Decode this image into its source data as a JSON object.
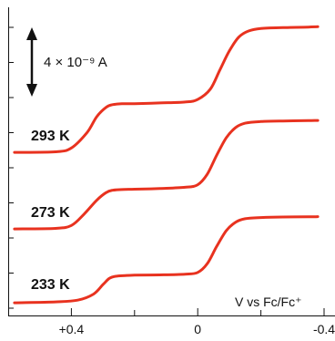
{
  "chart_data": {
    "type": "line",
    "xlabel": "V vs Fc/Fc⁺",
    "xlim": [
      0.6,
      -0.4
    ],
    "x_reversed": true,
    "x_ticks": [
      {
        "value": 0.4,
        "label": "+0.4"
      },
      {
        "value": 0.0,
        "label": "0"
      },
      {
        "value": -0.4,
        "label": "-0.4"
      }
    ],
    "y_units": "A",
    "scale_bar": {
      "value": 4e-09,
      "label": "4 × 10⁻⁹ A"
    },
    "grid": false,
    "line_color": "#e8321f",
    "series": [
      {
        "name": "293 K",
        "x": [
          0.58,
          0.45,
          0.4,
          0.35,
          0.32,
          0.29,
          0.27,
          0.24,
          0.2,
          0.12,
          0.04,
          0.0,
          -0.04,
          -0.07,
          -0.1,
          -0.13,
          -0.16,
          -0.2,
          -0.27,
          -0.35,
          -0.38
        ],
        "y": [
          0.05,
          0.08,
          0.3,
          1.2,
          2.1,
          2.65,
          2.8,
          2.85,
          2.86,
          2.9,
          2.95,
          3.1,
          3.7,
          4.8,
          5.9,
          6.7,
          7.05,
          7.2,
          7.25,
          7.28,
          7.3
        ]
      },
      {
        "name": "273 K",
        "x": [
          0.58,
          0.45,
          0.4,
          0.36,
          0.32,
          0.29,
          0.27,
          0.24,
          0.2,
          0.12,
          0.04,
          0.0,
          -0.03,
          -0.06,
          -0.09,
          -0.12,
          -0.15,
          -0.2,
          -0.27,
          -0.35,
          -0.38
        ],
        "y": [
          0.05,
          0.08,
          0.25,
          0.9,
          1.7,
          2.15,
          2.28,
          2.32,
          2.34,
          2.38,
          2.45,
          2.6,
          3.2,
          4.3,
          5.3,
          5.9,
          6.15,
          6.25,
          6.28,
          6.3,
          6.31
        ]
      },
      {
        "name": "233 K",
        "x": [
          0.58,
          0.45,
          0.38,
          0.33,
          0.3,
          0.28,
          0.26,
          0.23,
          0.2,
          0.12,
          0.04,
          0.0,
          -0.03,
          -0.06,
          -0.09,
          -0.12,
          -0.15,
          -0.2,
          -0.27,
          -0.35,
          -0.38
        ],
        "y": [
          0.05,
          0.1,
          0.2,
          0.55,
          1.1,
          1.45,
          1.58,
          1.62,
          1.64,
          1.66,
          1.7,
          1.8,
          2.3,
          3.3,
          4.2,
          4.7,
          4.9,
          4.97,
          5.0,
          5.01,
          5.02
        ]
      }
    ]
  }
}
